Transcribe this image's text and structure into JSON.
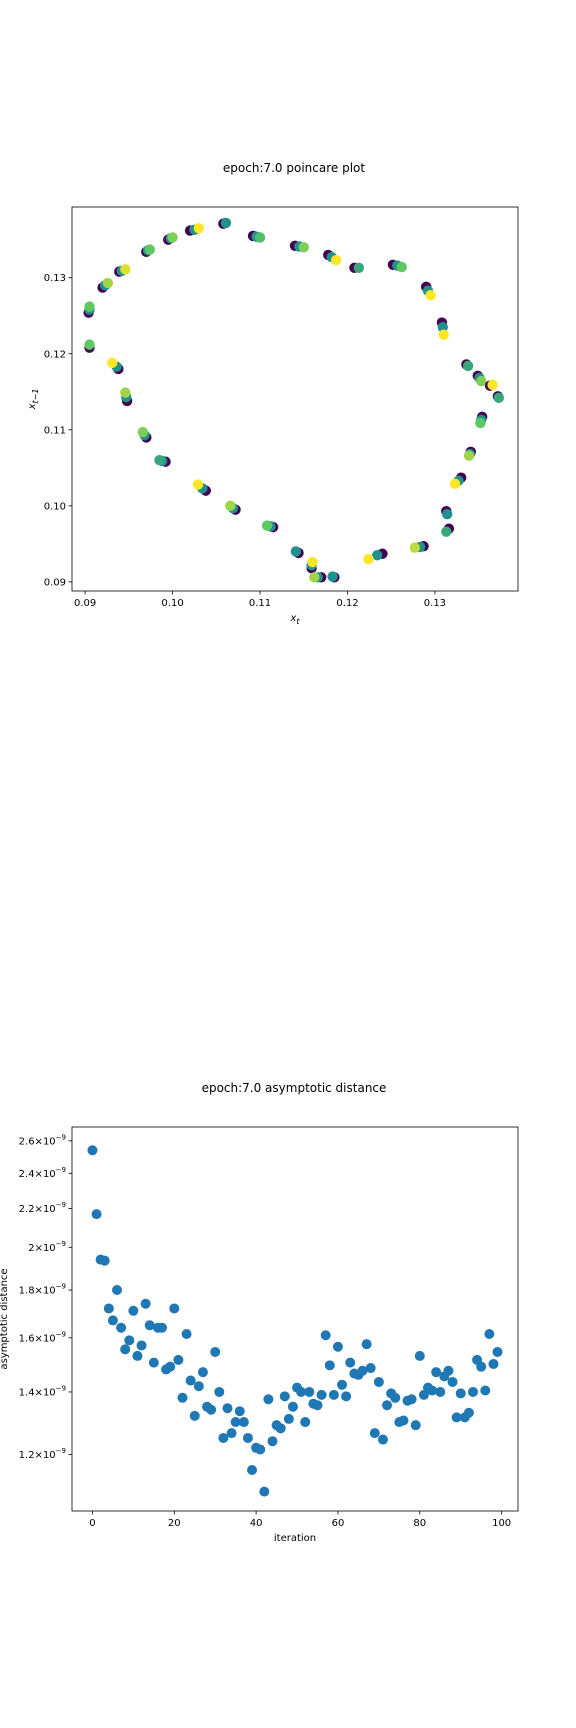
{
  "chart_data": [
    {
      "type": "scatter",
      "title": "epoch:7.0 poincare plot",
      "xlabel": "x_t",
      "ylabel": "x_{t-1}",
      "xlim": [
        0.0885,
        0.1395
      ],
      "ylim": [
        0.0888,
        0.1393
      ],
      "xticks": [
        0.09,
        0.1,
        0.11,
        0.12,
        0.13
      ],
      "xtick_labels": [
        "0.09",
        "0.10",
        "0.11",
        "0.12",
        "0.13"
      ],
      "yticks": [
        0.09,
        0.1,
        0.11,
        0.12,
        0.13
      ],
      "ytick_labels": [
        "0.09",
        "0.10",
        "0.11",
        "0.12",
        "0.13"
      ],
      "colormap": "viridis",
      "grid": false,
      "points": [
        {
          "x": 0.0904,
          "y": 0.1254,
          "c": 0.0
        },
        {
          "x": 0.0905,
          "y": 0.1258,
          "c": 0.5
        },
        {
          "x": 0.0905,
          "y": 0.1262,
          "c": 0.75
        },
        {
          "x": 0.0905,
          "y": 0.1208,
          "c": 0.0
        },
        {
          "x": 0.0905,
          "y": 0.1212,
          "c": 0.75
        },
        {
          "x": 0.092,
          "y": 0.1287,
          "c": 0.0
        },
        {
          "x": 0.0923,
          "y": 0.129,
          "c": 0.5
        },
        {
          "x": 0.0926,
          "y": 0.1293,
          "c": 0.85
        },
        {
          "x": 0.0939,
          "y": 0.1308,
          "c": 0.0
        },
        {
          "x": 0.0942,
          "y": 0.1309,
          "c": 0.5
        },
        {
          "x": 0.0946,
          "y": 0.1311,
          "c": 0.95
        },
        {
          "x": 0.0938,
          "y": 0.118,
          "c": 0.0
        },
        {
          "x": 0.0936,
          "y": 0.1183,
          "c": 0.5
        },
        {
          "x": 0.0931,
          "y": 0.1188,
          "c": 1.0
        },
        {
          "x": 0.0948,
          "y": 0.1138,
          "c": 0.0
        },
        {
          "x": 0.0947,
          "y": 0.1143,
          "c": 0.5
        },
        {
          "x": 0.0946,
          "y": 0.1149,
          "c": 0.85
        },
        {
          "x": 0.097,
          "y": 0.109,
          "c": 0.0
        },
        {
          "x": 0.0968,
          "y": 0.1093,
          "c": 0.5
        },
        {
          "x": 0.0966,
          "y": 0.1097,
          "c": 0.8
        },
        {
          "x": 0.097,
          "y": 0.1334,
          "c": 0.0
        },
        {
          "x": 0.0972,
          "y": 0.1336,
          "c": 0.5
        },
        {
          "x": 0.0974,
          "y": 0.1337,
          "c": 0.75
        },
        {
          "x": 0.0992,
          "y": 0.1058,
          "c": 0.0
        },
        {
          "x": 0.0988,
          "y": 0.1059,
          "c": 0.5
        },
        {
          "x": 0.0985,
          "y": 0.106,
          "c": 0.6
        },
        {
          "x": 0.0995,
          "y": 0.135,
          "c": 0.0
        },
        {
          "x": 0.0998,
          "y": 0.1352,
          "c": 0.5
        },
        {
          "x": 0.1,
          "y": 0.1353,
          "c": 0.8
        },
        {
          "x": 0.102,
          "y": 0.1362,
          "c": 0.0
        },
        {
          "x": 0.1025,
          "y": 0.1363,
          "c": 0.5
        },
        {
          "x": 0.103,
          "y": 0.1365,
          "c": 1.0
        },
        {
          "x": 0.1038,
          "y": 0.102,
          "c": 0.0
        },
        {
          "x": 0.1034,
          "y": 0.1023,
          "c": 0.5
        },
        {
          "x": 0.1029,
          "y": 0.1028,
          "c": 1.0
        },
        {
          "x": 0.1058,
          "y": 0.1371,
          "c": 0.0
        },
        {
          "x": 0.1061,
          "y": 0.1372,
          "c": 0.5
        },
        {
          "x": 0.1072,
          "y": 0.0995,
          "c": 0.0
        },
        {
          "x": 0.1069,
          "y": 0.0997,
          "c": 0.5
        },
        {
          "x": 0.1066,
          "y": 0.1,
          "c": 0.85
        },
        {
          "x": 0.1092,
          "y": 0.1355,
          "c": 0.0
        },
        {
          "x": 0.1096,
          "y": 0.1354,
          "c": 0.5
        },
        {
          "x": 0.11,
          "y": 0.1353,
          "c": 0.7
        },
        {
          "x": 0.1115,
          "y": 0.0972,
          "c": 0.0
        },
        {
          "x": 0.1112,
          "y": 0.0973,
          "c": 0.5
        },
        {
          "x": 0.1108,
          "y": 0.0974,
          "c": 0.75
        },
        {
          "x": 0.114,
          "y": 0.1342,
          "c": 0.0
        },
        {
          "x": 0.1145,
          "y": 0.1341,
          "c": 0.5
        },
        {
          "x": 0.115,
          "y": 0.134,
          "c": 0.8
        },
        {
          "x": 0.1144,
          "y": 0.0938,
          "c": 0.0
        },
        {
          "x": 0.1141,
          "y": 0.094,
          "c": 0.5
        },
        {
          "x": 0.1159,
          "y": 0.0918,
          "c": 0.0
        },
        {
          "x": 0.1159,
          "y": 0.0922,
          "c": 0.5
        },
        {
          "x": 0.116,
          "y": 0.0926,
          "c": 1.0
        },
        {
          "x": 0.117,
          "y": 0.0906,
          "c": 0.0
        },
        {
          "x": 0.1166,
          "y": 0.0906,
          "c": 0.5
        },
        {
          "x": 0.1162,
          "y": 0.0906,
          "c": 0.85
        },
        {
          "x": 0.1178,
          "y": 0.133,
          "c": 0.0
        },
        {
          "x": 0.1182,
          "y": 0.1327,
          "c": 0.5
        },
        {
          "x": 0.1187,
          "y": 0.1323,
          "c": 1.0
        },
        {
          "x": 0.1185,
          "y": 0.0906,
          "c": 0.0
        },
        {
          "x": 0.1183,
          "y": 0.0907,
          "c": 0.5
        },
        {
          "x": 0.1208,
          "y": 0.1313,
          "c": 0.0
        },
        {
          "x": 0.1213,
          "y": 0.1313,
          "c": 0.6
        },
        {
          "x": 0.124,
          "y": 0.0937,
          "c": 0.0
        },
        {
          "x": 0.1234,
          "y": 0.0935,
          "c": 0.5
        },
        {
          "x": 0.1224,
          "y": 0.093,
          "c": 1.0
        },
        {
          "x": 0.1252,
          "y": 0.1317,
          "c": 0.0
        },
        {
          "x": 0.1257,
          "y": 0.1316,
          "c": 0.5
        },
        {
          "x": 0.1262,
          "y": 0.1314,
          "c": 0.75
        },
        {
          "x": 0.1287,
          "y": 0.0947,
          "c": 0.0
        },
        {
          "x": 0.1283,
          "y": 0.0946,
          "c": 0.5
        },
        {
          "x": 0.1277,
          "y": 0.0945,
          "c": 0.9
        },
        {
          "x": 0.129,
          "y": 0.1288,
          "c": 0.0
        },
        {
          "x": 0.1292,
          "y": 0.1283,
          "c": 0.5
        },
        {
          "x": 0.1295,
          "y": 0.1277,
          "c": 1.0
        },
        {
          "x": 0.1308,
          "y": 0.1241,
          "c": 0.0
        },
        {
          "x": 0.1309,
          "y": 0.1235,
          "c": 0.5
        },
        {
          "x": 0.131,
          "y": 0.1225,
          "c": 1.0
        },
        {
          "x": 0.1313,
          "y": 0.0993,
          "c": 0.0
        },
        {
          "x": 0.1314,
          "y": 0.0989,
          "c": 0.5
        },
        {
          "x": 0.1316,
          "y": 0.097,
          "c": 0.0
        },
        {
          "x": 0.1313,
          "y": 0.0966,
          "c": 0.6
        },
        {
          "x": 0.133,
          "y": 0.1037,
          "c": 0.0
        },
        {
          "x": 0.1327,
          "y": 0.1033,
          "c": 0.5
        },
        {
          "x": 0.1323,
          "y": 0.1029,
          "c": 1.0
        },
        {
          "x": 0.1336,
          "y": 0.1186,
          "c": 0.0
        },
        {
          "x": 0.1338,
          "y": 0.1184,
          "c": 0.6
        },
        {
          "x": 0.1341,
          "y": 0.1071,
          "c": 0.0
        },
        {
          "x": 0.134,
          "y": 0.1068,
          "c": 0.5
        },
        {
          "x": 0.1339,
          "y": 0.1066,
          "c": 0.85
        },
        {
          "x": 0.1349,
          "y": 0.1171,
          "c": 0.0
        },
        {
          "x": 0.1351,
          "y": 0.1168,
          "c": 0.5
        },
        {
          "x": 0.1353,
          "y": 0.1164,
          "c": 0.8
        },
        {
          "x": 0.1354,
          "y": 0.1117,
          "c": 0.0
        },
        {
          "x": 0.1353,
          "y": 0.1113,
          "c": 0.5
        },
        {
          "x": 0.1352,
          "y": 0.1109,
          "c": 0.75
        },
        {
          "x": 0.1363,
          "y": 0.1158,
          "c": 0.0
        },
        {
          "x": 0.1366,
          "y": 0.1159,
          "c": 1.0
        },
        {
          "x": 0.1372,
          "y": 0.1144,
          "c": 0.0
        },
        {
          "x": 0.1373,
          "y": 0.1142,
          "c": 0.6
        }
      ]
    },
    {
      "type": "scatter",
      "title": "epoch:7.0 asymptotic distance",
      "xlabel": "iteration",
      "ylabel": "asymptotic distance",
      "yscale": "log",
      "xlim": [
        -5,
        104
      ],
      "ylim": [
        1.044e-09,
        2.69e-09
      ],
      "xticks": [
        0,
        20,
        40,
        60,
        80,
        100
      ],
      "xtick_labels": [
        "0",
        "20",
        "40",
        "60",
        "80",
        "100"
      ],
      "yticks": [
        1.2e-09,
        1.4e-09,
        1.6e-09,
        1.8e-09,
        2e-09,
        2.2e-09,
        2.4e-09,
        2.6e-09
      ],
      "ytick_mantissas": [
        "1.2",
        "1.4",
        "1.6",
        "1.8",
        "2",
        "2.2",
        "2.4",
        "2.6"
      ],
      "ytick_times": "×10",
      "ytick_exponent": "−9",
      "color": "#1f77b4",
      "grid": false,
      "x": [
        0,
        1,
        2,
        3,
        4,
        5,
        6,
        7,
        8,
        9,
        10,
        11,
        12,
        13,
        14,
        15,
        16,
        17,
        18,
        19,
        20,
        21,
        22,
        23,
        24,
        25,
        26,
        27,
        28,
        29,
        30,
        31,
        32,
        33,
        34,
        35,
        36,
        37,
        38,
        39,
        40,
        41,
        42,
        43,
        44,
        45,
        46,
        47,
        48,
        49,
        50,
        51,
        52,
        53,
        54,
        55,
        56,
        57,
        58,
        59,
        60,
        61,
        62,
        63,
        64,
        65,
        66,
        67,
        68,
        69,
        70,
        71,
        72,
        73,
        74,
        75,
        76,
        77,
        78,
        79,
        80,
        81,
        82,
        83,
        84,
        85,
        86,
        87,
        88,
        89,
        90,
        91,
        92,
        93,
        94,
        95,
        96,
        97,
        98,
        99
      ],
      "y": [
        2.54e-09,
        2.17e-09,
        1.94e-09,
        1.935e-09,
        1.72e-09,
        1.67e-09,
        1.8e-09,
        1.64e-09,
        1.555e-09,
        1.59e-09,
        1.71e-09,
        1.53e-09,
        1.57e-09,
        1.74e-09,
        1.65e-09,
        1.505e-09,
        1.64e-09,
        1.64e-09,
        1.48e-09,
        1.49e-09,
        1.72e-09,
        1.515e-09,
        1.38e-09,
        1.615e-09,
        1.44e-09,
        1.32e-09,
        1.42e-09,
        1.47e-09,
        1.35e-09,
        1.34e-09,
        1.545e-09,
        1.4e-09,
        1.25e-09,
        1.345e-09,
        1.265e-09,
        1.3e-09,
        1.335e-09,
        1.3e-09,
        1.25e-09,
        1.155e-09,
        1.22e-09,
        1.215e-09,
        1.095e-09,
        1.375e-09,
        1.24e-09,
        1.29e-09,
        1.28e-09,
        1.385e-09,
        1.31e-09,
        1.35e-09,
        1.415e-09,
        1.4e-09,
        1.3e-09,
        1.4e-09,
        1.36e-09,
        1.355e-09,
        1.39e-09,
        1.61e-09,
        1.495e-09,
        1.39e-09,
        1.565e-09,
        1.425e-09,
        1.385e-09,
        1.505e-09,
        1.465e-09,
        1.46e-09,
        1.475e-09,
        1.575e-09,
        1.485e-09,
        1.265e-09,
        1.435e-09,
        1.245e-09,
        1.355e-09,
        1.395e-09,
        1.38e-09,
        1.3e-09,
        1.305e-09,
        1.37e-09,
        1.375e-09,
        1.29e-09,
        1.53e-09,
        1.39e-09,
        1.415e-09,
        1.405e-09,
        1.47e-09,
        1.4e-09,
        1.455e-09,
        1.475e-09,
        1.435e-09,
        1.315e-09,
        1.395e-09,
        1.315e-09,
        1.33e-09,
        1.4e-09,
        1.515e-09,
        1.49e-09,
        1.405e-09,
        1.615e-09,
        1.5e-09,
        1.545e-09
      ]
    }
  ]
}
